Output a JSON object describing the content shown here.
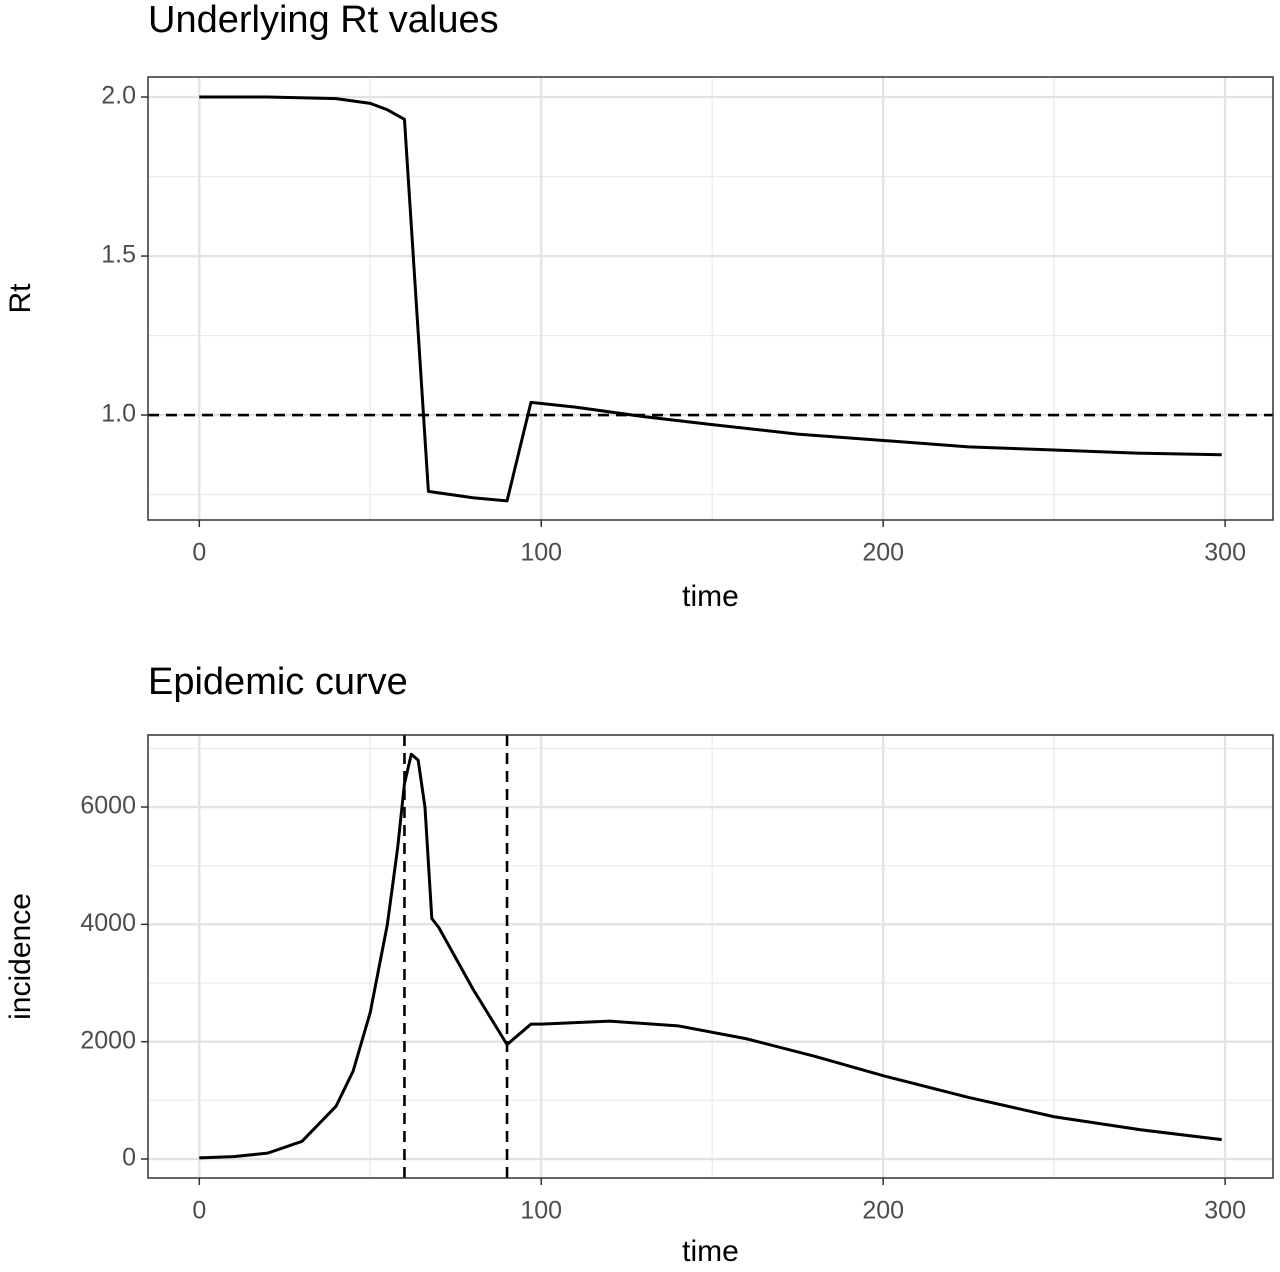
{
  "chart_data": [
    {
      "type": "line",
      "title": "Underlying Rt values",
      "xlabel": "time",
      "ylabel": "Rt",
      "x": [
        0,
        20,
        40,
        50,
        55,
        60,
        67,
        80,
        90,
        97,
        110,
        130,
        150,
        175,
        200,
        225,
        250,
        275,
        299
      ],
      "series": [
        {
          "color": "#000000",
          "values": [
            2.0,
            2.0,
            1.995,
            1.98,
            1.96,
            1.93,
            0.76,
            0.74,
            0.73,
            1.04,
            1.025,
            0.995,
            0.97,
            0.94,
            0.92,
            0.9,
            0.89,
            0.88,
            0.875
          ]
        }
      ],
      "xlim": [
        -15,
        314
      ],
      "xticks": [
        0,
        100,
        200,
        300
      ],
      "xminor": [
        50,
        150,
        250
      ],
      "ylim": [
        0.67,
        2.063
      ],
      "yticks": [
        {
          "value": 1,
          "label": "1.0"
        },
        1.5,
        {
          "value": 2,
          "label": "2.0"
        }
      ],
      "yminor": [
        0.75,
        1.25,
        1.75
      ],
      "hline": 1,
      "grid": true
    },
    {
      "type": "line",
      "title": "Epidemic curve",
      "xlabel": "time",
      "ylabel": "incidence",
      "x": [
        0,
        10,
        20,
        30,
        40,
        45,
        50,
        55,
        58,
        60,
        62,
        64,
        66,
        68,
        70,
        80,
        90,
        95,
        97,
        100,
        120,
        140,
        160,
        180,
        200,
        225,
        250,
        275,
        299
      ],
      "series": [
        {
          "color": "#000000",
          "values": [
            20,
            40,
            100,
            300,
            900,
            1500,
            2500,
            4000,
            5300,
            6400,
            6900,
            6800,
            6000,
            4100,
            3950,
            2900,
            1950,
            2200,
            2300,
            2300,
            2350,
            2270,
            2050,
            1750,
            1420,
            1050,
            720,
            500,
            330
          ]
        }
      ],
      "xlim": [
        -15,
        314
      ],
      "xticks": [
        0,
        100,
        200,
        300
      ],
      "xminor": [
        50,
        150,
        250
      ],
      "ylim": [
        -324,
        7228
      ],
      "yticks": [
        0,
        2000,
        4000,
        6000
      ],
      "yminor": [
        1000,
        3000,
        5000,
        7000
      ],
      "vlines": [
        60,
        90
      ],
      "grid": true
    }
  ]
}
